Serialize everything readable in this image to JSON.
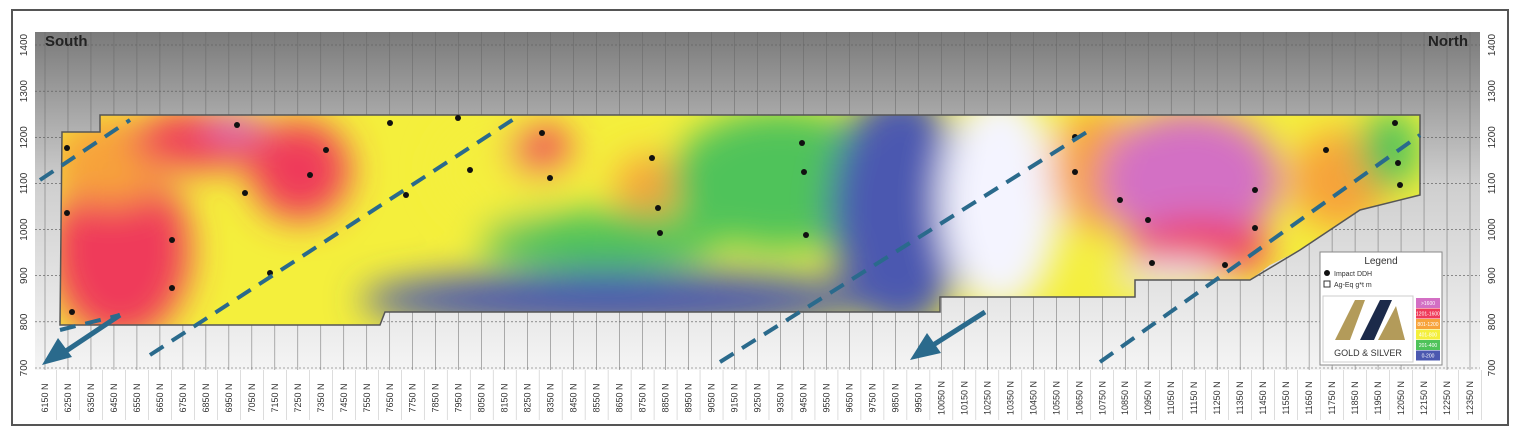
{
  "map": {
    "labels": {
      "left": "South",
      "right": "North"
    },
    "elevations": [
      "1400",
      "1300",
      "1200",
      "1100",
      "1000",
      "900",
      "800",
      "700"
    ],
    "northings": [
      "6150 N",
      "6250 N",
      "6350 N",
      "6450 N",
      "6550 N",
      "6650 N",
      "6750 N",
      "6850 N",
      "6950 N",
      "7050 N",
      "7150 N",
      "7250 N",
      "7350 N",
      "7450 N",
      "7550 N",
      "7650 N",
      "7750 N",
      "7850 N",
      "7950 N",
      "8050 N",
      "8150 N",
      "8250 N",
      "8350 N",
      "8450 N",
      "8550 N",
      "8650 N",
      "8750 N",
      "8850 N",
      "8950 N",
      "9050 N",
      "9150 N",
      "9250 N",
      "9350 N",
      "9450 N",
      "9550 N",
      "9650 N",
      "9750 N",
      "9850 N",
      "9950 N",
      "10050 N",
      "10150 N",
      "10250 N",
      "10350 N",
      "10450 N",
      "10550 N",
      "10650 N",
      "10750 N",
      "10850 N",
      "10950 N",
      "11050 N",
      "11150 N",
      "11250 N",
      "11350 N",
      "11450 N",
      "11550 N",
      "11650 N",
      "11750 N",
      "11850 N",
      "11950 N",
      "12050 N",
      "12150 N",
      "12250 N",
      "12350 N"
    ],
    "legend": {
      "title": "Legend",
      "items": [
        "Impact DDH",
        "Ag-Eq g*t m"
      ],
      "classes": [
        {
          "label": ">1600",
          "color": "#d36fc4"
        },
        {
          "label": "1201-1600",
          "color": "#ef3b5a"
        },
        {
          "label": "801-1200",
          "color": "#f7a33a"
        },
        {
          "label": "401-800",
          "color": "#f4ef3c"
        },
        {
          "label": "201-400",
          "color": "#4fc35a"
        },
        {
          "label": "0-200",
          "color": "#4b58b0"
        }
      ]
    },
    "logo": "GOLD & SILVER"
  }
}
